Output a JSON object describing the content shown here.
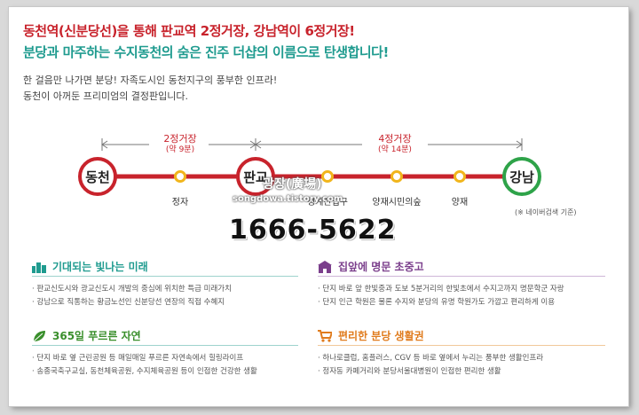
{
  "headline": {
    "line1": "동천역(신분당선)을 통해 판교역 2정거장, 강남역이 6정거장!",
    "line2": "분당과 마주하는 수지동천의 숨은 진주 더샵의 이름으로 탄생합니다!"
  },
  "intro": {
    "line1": "한 걸음만 나가면 분당! 자족도시인 동천지구의 풍부한 인프라!",
    "line2": "동천이 아꺼둔 프리미엄의 결정판입니다."
  },
  "route": {
    "segment1": {
      "stops": "2정거장",
      "time": "(약 9분)"
    },
    "segment2": {
      "stops": "4정거장",
      "time": "(약 14분)"
    },
    "stations": {
      "dongcheon": "동천",
      "jeongja": "정자",
      "pangyo": "판교",
      "cheonggyesan": "청계산입구",
      "yangjae_citizen": "양재시민의숲",
      "yangjae": "양재",
      "gangnam": "강남"
    },
    "note": "(※ 네이버검색 기준)",
    "colors": {
      "line": "#c8232c",
      "major": "#c8232c",
      "minor": "#f1b51c",
      "gangnam": "#2ea349"
    }
  },
  "watermark": {
    "line1": "광장(廣場)",
    "line2": "songdowa.tistory.com"
  },
  "phone": "1666-5622",
  "sections": {
    "future": {
      "title": "기대되는 빛나는 미래",
      "icon": "city-buildings-icon",
      "items": [
        "판교신도시와 광교신도시 개발의 중심에 위치한 특급 미래가치",
        "강남으로 직통하는 황금노선인 신분당선 연장의 직접 수혜지"
      ]
    },
    "school": {
      "title": "집앞에 명문 초중고",
      "icon": "school-building-icon",
      "items": [
        "단지 바로 앞 한빛중과 도보 5분거리의 한빛초에서 수지고까지 명문학군 자랑",
        "단지 인근 학원은 물론 수지와 분당의 유명 학원가도 가깝고 편리하게 이용"
      ]
    },
    "nature": {
      "title": "365일 푸르른 자연",
      "icon": "leaf-icon",
      "items": [
        "단지 바로 옆 근린공원 등 매일매일 푸르른 자연속에서 힐링라이프",
        "송종국축구교실, 동천체육공원, 수지체육공원 등이 인접한 건강한 생활"
      ]
    },
    "living": {
      "title": "편리한 분당 생활권",
      "icon": "shopping-cart-icon",
      "items": [
        "하나로클럽, 홈플러스, CGV 등 바로 옆에서 누리는 풍부한 생활인프라",
        "정자동 카페거리와 분당서울대병원이 인접한 편리한 생활"
      ]
    }
  },
  "colors": {
    "teal": "#1f9b8f",
    "purple": "#7b3f8c",
    "orange": "#e07c1e",
    "red": "#c8232c",
    "green": "#3a8f2c"
  }
}
